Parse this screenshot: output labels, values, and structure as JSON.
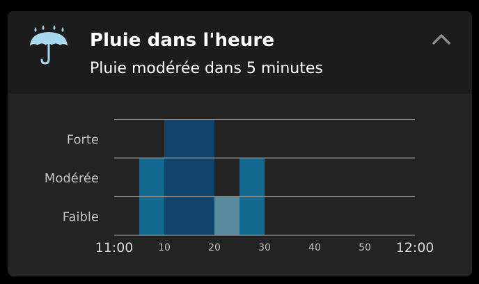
{
  "card": {
    "title": "Pluie dans l'heure",
    "subtitle": "Pluie modérée dans 5 minutes",
    "icon": "umbrella-rain-icon",
    "collapse_icon": "chevron-up-icon"
  },
  "colors": {
    "card_bg": "#232323",
    "header_bg": "#1c1c1c",
    "icon": "#a6d8ee",
    "gridline": "#8c8c8c",
    "bar_faible": "#5a8b9e",
    "bar_moderee": "#156a92",
    "bar_forte": "#12456d"
  },
  "chart_data": {
    "type": "bar",
    "levels": [
      "Faible",
      "Modérée",
      "Forte"
    ],
    "x_ticks": [
      {
        "value": 0,
        "label": "11:00",
        "major": true
      },
      {
        "value": 10,
        "label": "10",
        "major": false
      },
      {
        "value": 20,
        "label": "20",
        "major": false
      },
      {
        "value": 30,
        "label": "30",
        "major": false
      },
      {
        "value": 40,
        "label": "40",
        "major": false
      },
      {
        "value": 50,
        "label": "50",
        "major": false
      },
      {
        "value": 60,
        "label": "12:00",
        "major": true
      }
    ],
    "xlim": [
      0,
      60
    ],
    "ylim": [
      0,
      3
    ],
    "intervals": [
      {
        "start": 5,
        "end": 10,
        "level": 2
      },
      {
        "start": 10,
        "end": 15,
        "level": 3
      },
      {
        "start": 15,
        "end": 20,
        "level": 3
      },
      {
        "start": 20,
        "end": 25,
        "level": 1
      },
      {
        "start": 25,
        "end": 30,
        "level": 2
      }
    ],
    "grid": true
  }
}
